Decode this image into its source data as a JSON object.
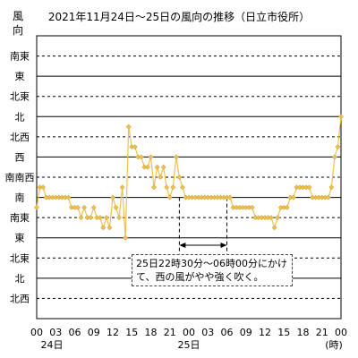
{
  "chart_data": {
    "type": "line",
    "title": "2021年11月24日～25日の風向の推移（日立市役所）",
    "ylabel": "風向",
    "xlabel": "(時)",
    "direction_order": [
      "北西",
      "北",
      "北東",
      "東",
      "南東",
      "南",
      "南南西",
      "西",
      "北西",
      "北",
      "北東",
      "東",
      "南東"
    ],
    "y_tick_labels": [
      "南東",
      "東",
      "北東",
      "北",
      "北西",
      "西",
      "南南西",
      "南",
      "南東",
      "東",
      "北東",
      "北",
      "北西"
    ],
    "x_tick_labels": [
      "00",
      "03",
      "06",
      "09",
      "12",
      "15",
      "18",
      "21",
      "00",
      "03",
      "06",
      "09",
      "12",
      "15",
      "18",
      "21",
      "00"
    ],
    "x_sub_labels": [
      "24日",
      "25日",
      "(時)"
    ],
    "x_range_hours": [
      0,
      48
    ],
    "series": [
      {
        "color": "#f0c24a",
        "x": [
          0,
          0.5,
          1,
          1.5,
          2,
          2.5,
          3,
          3.5,
          4,
          4.5,
          5,
          5.5,
          6,
          6.5,
          7,
          7.5,
          8,
          8.5,
          9,
          9.5,
          10,
          10.5,
          11,
          11.5,
          12,
          12.5,
          13,
          13.5,
          14,
          14.5,
          15,
          15.5,
          16,
          16.5,
          17,
          17.5,
          18,
          18.5,
          19,
          19.5,
          20,
          20.5,
          21,
          21.5,
          22,
          22.5,
          23,
          23.5,
          24,
          24.5,
          25,
          25.5,
          26,
          26.5,
          27,
          27.5,
          28,
          28.5,
          29,
          29.5,
          30,
          30.5,
          31,
          31.5,
          32,
          32.5,
          33,
          33.5,
          34,
          34.5,
          35,
          35.5,
          36,
          36.5,
          37,
          37.5,
          38,
          38.5,
          39,
          39.5,
          40,
          40.5,
          41,
          41.5,
          42,
          42.5,
          43,
          43.5,
          44,
          44.5,
          45,
          45.5,
          46,
          46.5,
          47,
          47.5,
          48
        ],
        "y": [
          7.5,
          6.5,
          6.5,
          7,
          7,
          7,
          7,
          7,
          7,
          7,
          7,
          7.5,
          7.5,
          7.5,
          8,
          7.5,
          8,
          8,
          7.5,
          8,
          8,
          8.5,
          8,
          8.5,
          7,
          7.5,
          8,
          6.5,
          9,
          3.5,
          4.5,
          4.5,
          5,
          5,
          5.5,
          5.5,
          5,
          6.5,
          5.5,
          6,
          5.5,
          6.5,
          7,
          6.5,
          5,
          6,
          6.5,
          7,
          7,
          7,
          7,
          7,
          7,
          7,
          7,
          7,
          7,
          7,
          7,
          7,
          7,
          7,
          7.5,
          7.5,
          7.5,
          7.5,
          7.5,
          7.5,
          7.5,
          8,
          8,
          8,
          8,
          8,
          8,
          8.5,
          8,
          7.5,
          7.5,
          7.5,
          7,
          7,
          6.5,
          6.5,
          6.5,
          6.5,
          6.5,
          7,
          7,
          7,
          7,
          7,
          7,
          6.5,
          5,
          4.5,
          3
        ]
      }
    ],
    "annotation_lines_hours": [
      22.5,
      30
    ],
    "annotation": "25日22時30分～06時00分にかけて、西の風がやや強く吹く。"
  }
}
